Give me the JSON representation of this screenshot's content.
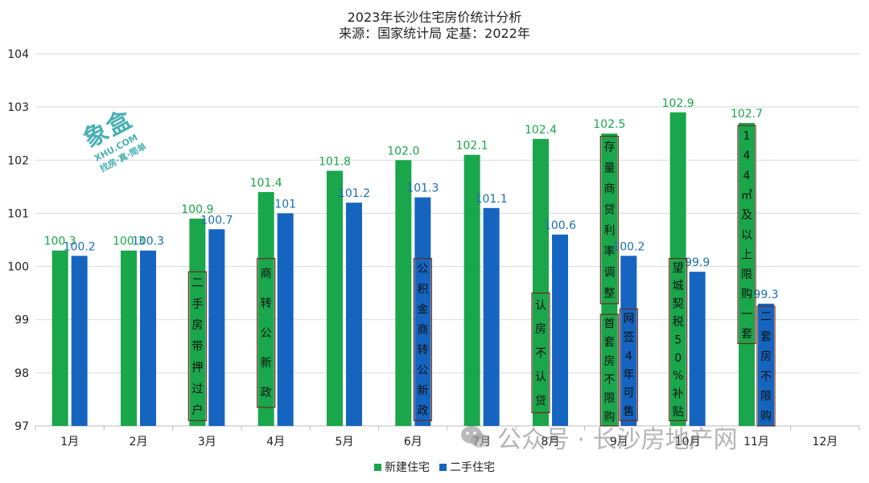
{
  "title": "2023年长沙住宅房价统计分析",
  "subtitle": "来源：国家统计局 定基：2022年",
  "logo": {
    "main": "象盒",
    "sub": "XHU.COM",
    "tag": "找房·真·简单"
  },
  "watermark": {
    "text": "公众号 · 长沙房地产网",
    "icon": "wechat-icon"
  },
  "colors": {
    "new": "#1aa64b",
    "second": "#1565c0",
    "new_label": "#1aa64b",
    "second_label": "#1a6fb3",
    "grid": "#d9d9d9",
    "annotation_border": "#6a2a1a"
  },
  "chart_data": {
    "type": "bar",
    "categories": [
      "1月",
      "2月",
      "3月",
      "4月",
      "5月",
      "6月",
      "7月",
      "8月",
      "9月",
      "10月",
      "11月",
      "12月"
    ],
    "series": [
      {
        "name": "新建住宅",
        "values": [
          100.3,
          100.3,
          100.9,
          101.4,
          101.8,
          102.0,
          102.1,
          102.4,
          102.5,
          102.9,
          102.7,
          null
        ],
        "labels": [
          "100.3",
          "100.3",
          "100.9",
          "101.4",
          "101.8",
          "102.0",
          "102.1",
          "102.4",
          "102.5",
          "102.9",
          "102.7",
          ""
        ]
      },
      {
        "name": "二手住宅",
        "values": [
          100.2,
          100.3,
          100.7,
          101,
          101.2,
          101.3,
          101.1,
          100.6,
          100.2,
          99.9,
          99.3,
          null
        ],
        "labels": [
          "100.2",
          "100.3",
          "100.7",
          "101",
          "101.2",
          "101.3",
          "101.1",
          "100.6",
          "100.2",
          "99.9",
          "99.3",
          ""
        ]
      }
    ],
    "ylim": [
      97,
      104
    ],
    "yticks": [
      "97",
      "98",
      "99",
      "100",
      "101",
      "102",
      "103",
      "104"
    ],
    "grid": true,
    "legend": "bottom-center",
    "annotations": [
      {
        "month_index": 2,
        "series": 0,
        "text": "二手房带押过户",
        "y_top": 99.9,
        "y_bottom": 97.1
      },
      {
        "month_index": 3,
        "series": 0,
        "text": "商转公新政",
        "y_top": 100.15,
        "y_bottom": 97.35
      },
      {
        "month_index": 5,
        "series": 1,
        "text": "公积金商转公新政",
        "y_top": 100.15,
        "y_bottom": 97.1
      },
      {
        "month_index": 7,
        "series": 0,
        "text": "认房不认贷",
        "y_top": 99.5,
        "y_bottom": 97.25
      },
      {
        "month_index": 8,
        "series": 0,
        "text": "存量商贷利率调整",
        "y_top": 102.45,
        "y_bottom": 99.3
      },
      {
        "month_index": 8,
        "series": 0,
        "text": "首套房不限购",
        "y_top": 99.1,
        "y_bottom": 97.0
      },
      {
        "month_index": 8,
        "series": 1,
        "text": "网签4年可售",
        "y_top": 99.2,
        "y_bottom": 97.1
      },
      {
        "month_index": 9,
        "series": 0,
        "text": "望城契税50%补贴",
        "y_top": 100.15,
        "y_bottom": 97.1
      },
      {
        "month_index": 10,
        "series": 0,
        "text": "144㎡及以上限购一套",
        "y_top": 102.65,
        "y_bottom": 98.55
      },
      {
        "month_index": 10,
        "series": 1,
        "text": "二套房不限购",
        "y_top": 99.25,
        "y_bottom": 97.0
      }
    ]
  }
}
